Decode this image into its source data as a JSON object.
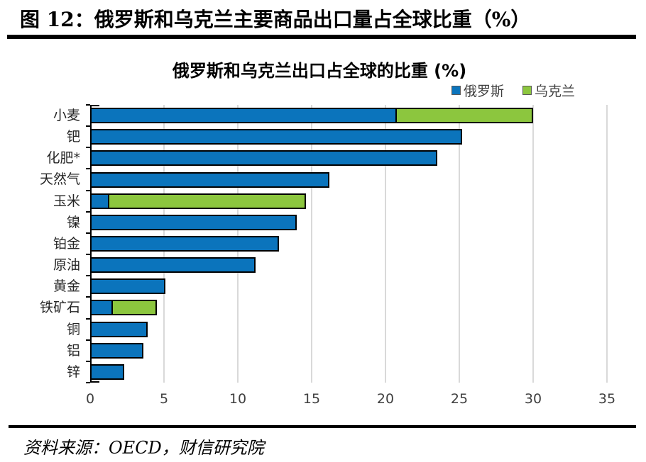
{
  "page": {
    "header_title": "图 12：俄罗斯和乌克兰主要商品出口量占全球比重（%）",
    "source_text": "资料来源：OECD，财信研究院"
  },
  "chart_data": {
    "type": "bar",
    "orientation": "horizontal",
    "stacked": true,
    "title": "俄罗斯和乌克兰出口占全球的比重 (%)",
    "categories": [
      "小麦",
      "钯",
      "化肥*",
      "天然气",
      "玉米",
      "镍",
      "铂金",
      "原油",
      "黄金",
      "铁矿石",
      "铜",
      "铝",
      "锌"
    ],
    "series": [
      {
        "name": "俄罗斯",
        "color": "#0B74BC",
        "values": [
          20.7,
          25.2,
          23.5,
          16.2,
          1.1,
          14.0,
          12.8,
          11.2,
          5.1,
          1.4,
          3.9,
          3.6,
          2.3
        ]
      },
      {
        "name": "乌克兰",
        "color": "#8CC63E",
        "values": [
          9.3,
          0,
          0,
          0,
          13.5,
          0,
          0,
          0,
          0,
          3.1,
          0,
          0,
          0
        ]
      }
    ],
    "xlim": [
      0,
      35
    ],
    "xticks": [
      0,
      5,
      10,
      15,
      20,
      25,
      30,
      35
    ],
    "xlabel": "",
    "ylabel": "",
    "grid": "vertical",
    "gridline_color": "#D9D9D9",
    "bar_outline_color": "#000000",
    "legend_position": "top-right"
  }
}
